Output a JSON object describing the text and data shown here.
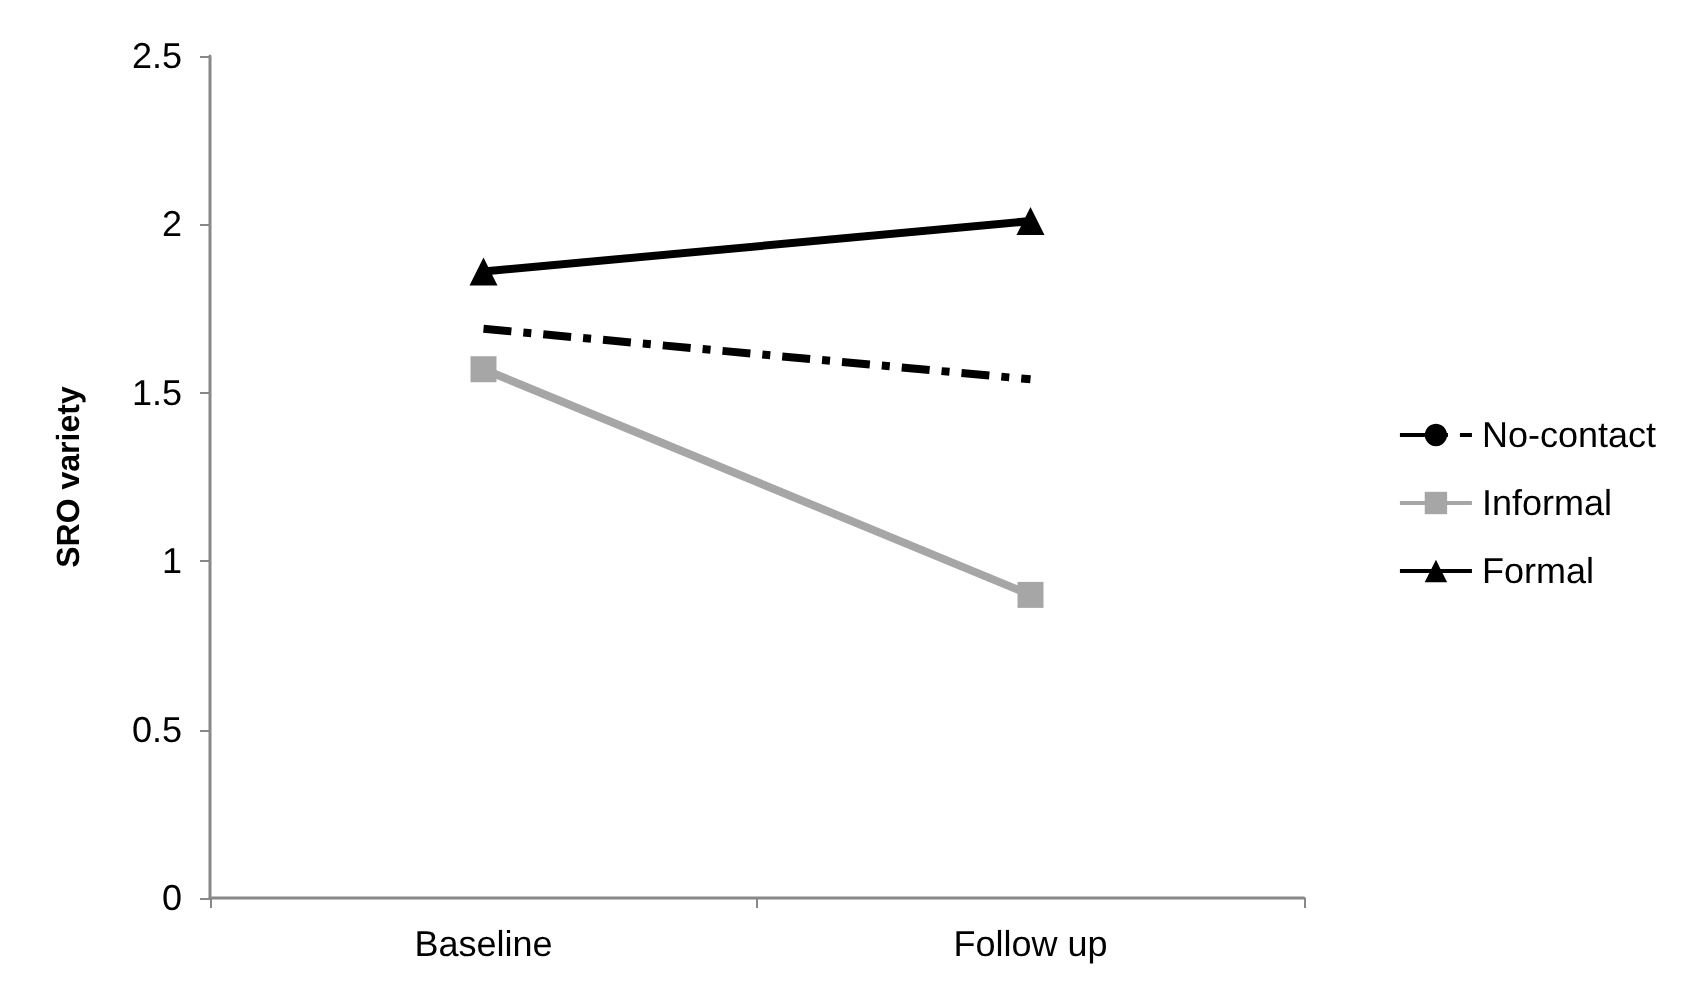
{
  "chart_data": {
    "type": "line",
    "ylabel": "SRO variety",
    "categories": [
      "Baseline",
      "Follow up"
    ],
    "series": [
      {
        "name": "No-contact",
        "color": "#000000",
        "values": [
          1.69,
          1.54
        ],
        "marker": "none",
        "line_style": "dashdot"
      },
      {
        "name": "Informal",
        "color": "#a6a6a6",
        "values": [
          1.57,
          0.9
        ],
        "marker": "square",
        "line_style": "solid"
      },
      {
        "name": "Formal",
        "color": "#000000",
        "values": [
          1.86,
          2.01
        ],
        "marker": "triangle",
        "line_style": "solid"
      }
    ],
    "ylim": [
      0,
      2.5
    ],
    "yticks": [
      0,
      0.5,
      1,
      1.5,
      2,
      2.5
    ],
    "grid": false,
    "legend": "right"
  }
}
